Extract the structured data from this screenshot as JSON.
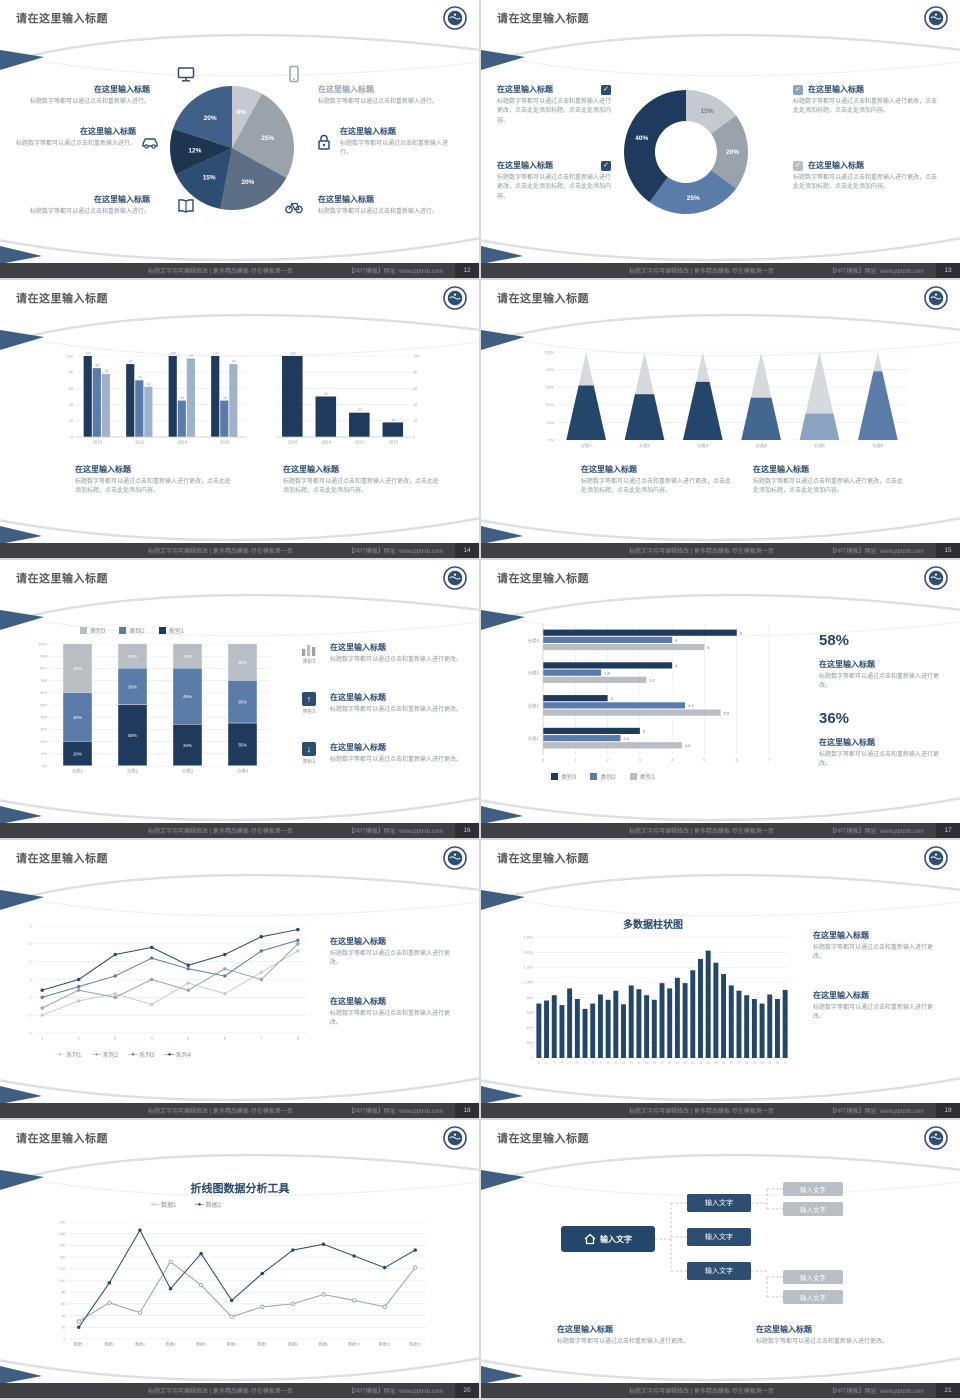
{
  "chrome": {
    "slide_title": "请在这里输入标题",
    "footer_left": "标题文字均可编辑修改 | 更多精品模板·尽在模板第一页",
    "footer_right": "【PPT模板】网址: www.pptmb.com",
    "accent_navy": "#24466b",
    "accent_steel": "#5b7ca8",
    "accent_gray": "#b9bec4"
  },
  "common": {
    "heading": "在这里输入标题",
    "body_short": "标题数字等都可以通过点击和重新输入进行。",
    "body_mid": "标题数字等都可以通过点击和重新输入进行更改。",
    "body_long": "标题数字等都可以通过点击和重新输入进行更改，点击此处添加标题，点击此处添加内容。"
  },
  "icons": {
    "check": "✓",
    "arrow_up": "↑",
    "arrow_down": "↓",
    "line_marker_filled": "─●─",
    "line_marker_open": "─○─"
  },
  "slides": [
    {
      "page": "12",
      "name": "pie-with-callouts",
      "chart_data": {
        "type": "pie",
        "values": [
          8,
          25,
          20,
          15,
          12,
          20
        ],
        "colors": [
          "#c6cad0",
          "#9aa2ab",
          "#5d6f84",
          "#2e4d73",
          "#1e3550",
          "#40608a"
        ]
      }
    },
    {
      "page": "13",
      "name": "donut-checklist",
      "chart_data": {
        "type": "pie",
        "inner_ratio": 0.5,
        "values": [
          15,
          20,
          25,
          40
        ],
        "colors": [
          "#c6cad0",
          "#9aa2ab",
          "#5b7ca8",
          "#1f3a5c"
        ],
        "label_colors": [
          "#777c82",
          "#ffffff",
          "#ffffff",
          "#ffffff"
        ]
      }
    },
    {
      "page": "14",
      "name": "bar-comparison",
      "chart_data": [
        {
          "type": "grouped-bar",
          "categories": [
            "2010",
            "2012",
            "2014",
            "2016"
          ],
          "series": [
            {
              "color": "#1f3a5c",
              "values": [
                100,
                90,
                100,
                100
              ]
            },
            {
              "color": "#5b7ca8",
              "values": [
                85,
                70,
                45,
                45
              ]
            },
            {
              "color": "#9fb2c9",
              "values": [
                78,
                62,
                97,
                90
              ]
            }
          ],
          "ymax": 100,
          "ystep": 20,
          "value_labels": true,
          "axis": "left"
        },
        {
          "type": "grouped-bar",
          "categories": [
            "2016",
            "2014",
            "2012",
            "2010"
          ],
          "series": [
            {
              "color": "#1f3a5c",
              "values": [
                100,
                50,
                30,
                18
              ]
            }
          ],
          "ymax": 100,
          "ystep": 20,
          "value_labels": true,
          "axis": "right"
        }
      ]
    },
    {
      "page": "15",
      "name": "cone-chart",
      "chart_data": {
        "type": "cone",
        "categories": [
          "分类1",
          "分类2",
          "分类3",
          "分类4",
          "分类5",
          "分类6"
        ],
        "values": [
          62,
          52,
          66,
          48,
          30,
          78
        ],
        "colors": [
          "#24466b",
          "#24466b",
          "#24466b",
          "#44678f",
          "#8aa3c0",
          "#5b7ca8"
        ],
        "top_color": "#d6d9dd",
        "ymax": 100,
        "ystep": 20
      }
    },
    {
      "page": "16",
      "name": "stacked-bar",
      "legend": [
        "类别3",
        "类别2",
        "类别1"
      ],
      "chart_data": {
        "type": "stacked-bar",
        "categories": [
          "分类1",
          "分类2",
          "分类3",
          "分类4"
        ],
        "series": [
          {
            "name": "类别1",
            "color": "#1f3a5c",
            "values": [
              20,
              50,
              34,
              35
            ]
          },
          {
            "name": "类别2",
            "color": "#5b7ca8",
            "values": [
              40,
              30,
              46,
              35
            ]
          },
          {
            "name": "类别3",
            "color": "#b9bec4",
            "values": [
              40,
              20,
              20,
              30
            ]
          }
        ],
        "ymax": 100,
        "ystep": 10
      }
    },
    {
      "page": "17",
      "name": "horizontal-bar-stats",
      "stat1": "58%",
      "stat2": "36%",
      "legend": [
        "类别3",
        "类别2",
        "类别1"
      ],
      "chart_data": {
        "type": "h-bar",
        "xmax": 7,
        "xstep": 1,
        "groups": [
          {
            "label": "分类4",
            "values": [
              6,
              4,
              5
            ]
          },
          {
            "label": "分类3",
            "values": [
              4,
              1.8,
              3.2
            ]
          },
          {
            "label": "分类2",
            "values": [
              2,
              4.4,
              5.5
            ]
          },
          {
            "label": "分类1",
            "values": [
              3,
              2.4,
              4.3
            ]
          }
        ],
        "colors": [
          "#1f3a5c",
          "#5b7ca8",
          "#b9bec4"
        ]
      }
    },
    {
      "page": "18",
      "name": "multi-line-chart",
      "legend": [
        "系列1",
        "系列2",
        "系列3",
        "系列4"
      ],
      "chart_data": {
        "type": "line",
        "ymax": 6,
        "ystep": 1,
        "x_labels": [
          "1",
          "2",
          "3",
          "4",
          "5",
          "6",
          "7",
          "8"
        ],
        "series": [
          {
            "name": "系列1",
            "color": "#c6cad0",
            "values": [
              1,
              1.8,
              2.2,
              1.6,
              2.8,
              2.2,
              3.4,
              4.6
            ]
          },
          {
            "name": "系列2",
            "color": "#9aa2ab",
            "values": [
              1.4,
              2.4,
              2,
              3,
              2.4,
              3.6,
              3,
              5
            ]
          },
          {
            "name": "系列3",
            "color": "#5b7ca8",
            "values": [
              2,
              2.6,
              3.2,
              4.2,
              3.6,
              3.2,
              4.6,
              5.2
            ]
          },
          {
            "name": "系列4",
            "color": "#24466b",
            "values": [
              2.4,
              3,
              4.4,
              4.8,
              3.8,
              4.4,
              5.4,
              5.8
            ]
          }
        ]
      }
    },
    {
      "page": "19",
      "name": "multi-column-chart",
      "chart_title": "多数据柱状图",
      "chart_data": {
        "type": "column",
        "ymax": 1600,
        "ystep": 200,
        "color": "#24466b",
        "values": [
          720,
          760,
          830,
          700,
          920,
          780,
          650,
          720,
          840,
          770,
          890,
          710,
          960,
          910,
          830,
          770,
          990,
          920,
          1060,
          990,
          1160,
          1310,
          1420,
          1260,
          1110,
          960,
          890,
          830,
          780,
          720,
          840,
          780,
          900
        ]
      }
    },
    {
      "page": "20",
      "name": "line-analysis-tool",
      "chart_title": "折线图数据分析工具",
      "legend": [
        "数据1",
        "数据2"
      ],
      "chart_data": {
        "type": "line",
        "ymax": 200,
        "ystep": 20,
        "x_labels": [
          "数据1",
          "数据2",
          "数据3",
          "数据4",
          "数据5",
          "数据6",
          "数据7",
          "数据8",
          "数据9",
          "数据10",
          "数据11",
          "数据12"
        ],
        "series": [
          {
            "name": "数据1",
            "color": "#9aa2ab",
            "open": true,
            "values": [
              30,
              62,
              45,
              132,
              92,
              38,
              55,
              60,
              76,
              66,
              55,
              122
            ]
          },
          {
            "name": "数据2",
            "color": "#24466b",
            "values": [
              20,
              96,
              186,
              86,
              146,
              66,
              112,
              152,
              162,
              142,
              122,
              152
            ]
          }
        ]
      }
    },
    {
      "page": "21",
      "name": "flow-diagram",
      "flow_label": "输入文字"
    }
  ]
}
